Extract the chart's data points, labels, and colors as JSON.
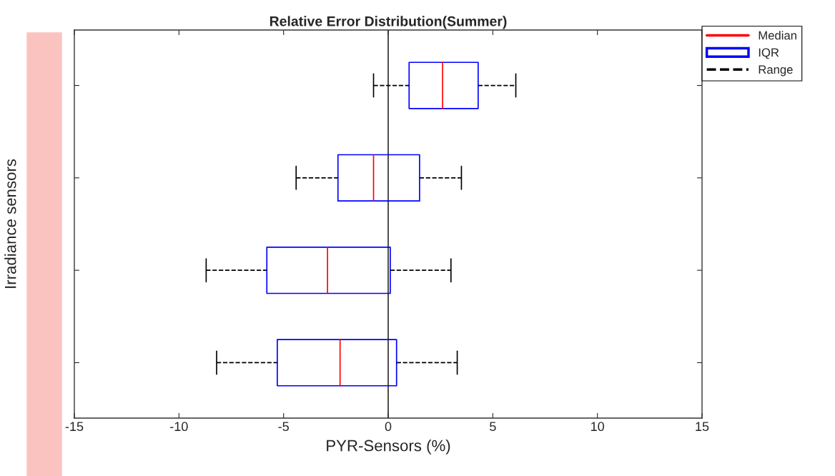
{
  "chart_data": {
    "type": "box",
    "title": "Relative Error Distribution(Summer)",
    "xlabel": "PYR-Sensors (%)",
    "ylabel": "Irradiance sensors",
    "orientation": "horizontal",
    "categories": [
      null,
      null,
      null,
      null
    ],
    "series": [
      {
        "name": "Median",
        "color": "#ff0000",
        "values": [
          null,
          null,
          null,
          null
        ]
      },
      {
        "name": "IQR",
        "color": "#0000ff",
        "boxes": [
          {
            "low": -0.7,
            "q1": 1.0,
            "median": 2.6,
            "q3": 4.3,
            "high": 6.1
          },
          {
            "low": -4.4,
            "q1": -2.4,
            "median": -0.7,
            "q3": 1.5,
            "high": 3.5
          },
          {
            "low": -8.7,
            "q1": -5.8,
            "median": -2.9,
            "q3": 0.1,
            "high": 3.0
          },
          {
            "low": -8.2,
            "q1": -5.3,
            "median": -2.3,
            "q3": 0.4,
            "high": 3.3
          }
        ]
      },
      {
        "name": "Range",
        "color": "#000000",
        "values": [
          null,
          null,
          null,
          null
        ]
      }
    ],
    "line_style": "dashed",
    "xlim": [
      -15,
      15
    ],
    "xticks": [
      -15,
      -10,
      -5,
      0,
      5,
      10,
      15
    ],
    "ref_lines": [
      {
        "axis": "x",
        "value": 0,
        "color": "#000000"
      }
    ],
    "grid": false,
    "legend": "top right"
  }
}
